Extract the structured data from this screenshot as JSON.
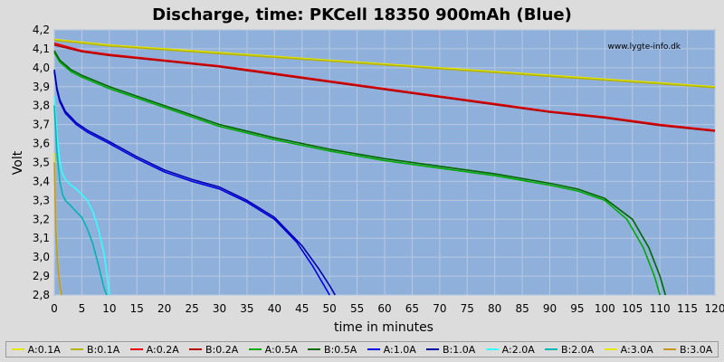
{
  "chart_data": {
    "type": "line",
    "title": "Discharge, time: PKCell 18350 900mAh (Blue)",
    "xlabel": "time in minutes",
    "ylabel": "Volt",
    "watermark": "www.lygte-info.dk",
    "xlim": [
      0,
      120
    ],
    "ylim": [
      2.8,
      4.2
    ],
    "x_ticks": [
      "0",
      "5",
      "10",
      "15",
      "20",
      "25",
      "30",
      "35",
      "40",
      "45",
      "50",
      "55",
      "60",
      "65",
      "70",
      "75",
      "80",
      "85",
      "90",
      "95",
      "100",
      "105",
      "110",
      "115",
      "120"
    ],
    "y_ticks": [
      "2,8",
      "2,9",
      "3,0",
      "3,1",
      "3,2",
      "3,3",
      "3,4",
      "3,5",
      "3,6",
      "3,7",
      "3,8",
      "3,9",
      "4,0",
      "4,1",
      "4,2"
    ],
    "grid": true,
    "legend_position": "bottom",
    "plot_background": "#8fb0db",
    "series": [
      {
        "name": "A:0.1A",
        "color": "#e6e600",
        "x": [
          0,
          10,
          20,
          30,
          40,
          50,
          60,
          70,
          80,
          90,
          100,
          110,
          120
        ],
        "y": [
          4.15,
          4.12,
          4.1,
          4.08,
          4.06,
          4.04,
          4.02,
          4.0,
          3.98,
          3.96,
          3.94,
          3.92,
          3.9
        ]
      },
      {
        "name": "B:0.1A",
        "color": "#b4b400",
        "x": [
          0,
          10,
          20,
          30,
          40,
          50,
          60,
          70,
          80,
          90,
          100,
          110,
          120
        ],
        "y": [
          4.145,
          4.115,
          4.095,
          4.075,
          4.055,
          4.035,
          4.015,
          3.995,
          3.975,
          3.955,
          3.935,
          3.915,
          3.895
        ]
      },
      {
        "name": "A:0.2A",
        "color": "#e60000",
        "x": [
          0,
          5,
          10,
          20,
          30,
          40,
          50,
          60,
          70,
          80,
          90,
          100,
          110,
          120
        ],
        "y": [
          4.13,
          4.09,
          4.07,
          4.04,
          4.01,
          3.97,
          3.93,
          3.89,
          3.85,
          3.81,
          3.77,
          3.74,
          3.7,
          3.67
        ]
      },
      {
        "name": "B:0.2A",
        "color": "#b40000",
        "x": [
          0,
          5,
          10,
          20,
          30,
          40,
          50,
          60,
          70,
          80,
          90,
          100,
          110,
          120
        ],
        "y": [
          4.12,
          4.085,
          4.065,
          4.035,
          4.005,
          3.965,
          3.925,
          3.885,
          3.845,
          3.805,
          3.765,
          3.735,
          3.695,
          3.665
        ]
      },
      {
        "name": "A:0.5A",
        "color": "#00aa00",
        "x": [
          0,
          1,
          3,
          5,
          10,
          20,
          30,
          40,
          50,
          60,
          70,
          80,
          90,
          95,
          100,
          104,
          107,
          109,
          110
        ],
        "y": [
          4.08,
          4.03,
          3.98,
          3.95,
          3.89,
          3.79,
          3.69,
          3.62,
          3.56,
          3.51,
          3.47,
          3.43,
          3.38,
          3.35,
          3.3,
          3.2,
          3.05,
          2.9,
          2.8
        ]
      },
      {
        "name": "B:0.5A",
        "color": "#006600",
        "x": [
          0,
          1,
          3,
          5,
          10,
          20,
          30,
          40,
          50,
          60,
          70,
          80,
          90,
          95,
          100,
          105,
          108,
          110,
          111
        ],
        "y": [
          4.09,
          4.04,
          3.99,
          3.96,
          3.9,
          3.8,
          3.7,
          3.63,
          3.57,
          3.52,
          3.48,
          3.44,
          3.39,
          3.36,
          3.31,
          3.2,
          3.05,
          2.9,
          2.8
        ]
      },
      {
        "name": "A:1.0A",
        "color": "#0000e6",
        "x": [
          0,
          0.5,
          1,
          2,
          4,
          6,
          10,
          15,
          20,
          25,
          30,
          35,
          40,
          44,
          47,
          49,
          50
        ],
        "y": [
          3.98,
          3.88,
          3.82,
          3.76,
          3.7,
          3.66,
          3.6,
          3.52,
          3.45,
          3.4,
          3.36,
          3.29,
          3.2,
          3.08,
          2.95,
          2.85,
          2.8
        ]
      },
      {
        "name": "B:1.0A",
        "color": "#0000aa",
        "x": [
          0,
          0.5,
          1,
          2,
          4,
          6,
          10,
          15,
          20,
          25,
          30,
          35,
          40,
          45,
          48,
          50,
          51
        ],
        "y": [
          3.99,
          3.89,
          3.83,
          3.77,
          3.71,
          3.67,
          3.61,
          3.53,
          3.46,
          3.41,
          3.37,
          3.3,
          3.21,
          3.06,
          2.94,
          2.85,
          2.8
        ]
      },
      {
        "name": "A:2.0A",
        "color": "#33ffff",
        "x": [
          0,
          0.5,
          1,
          1.5,
          2,
          3,
          4,
          5,
          6,
          7,
          8,
          9,
          9.5,
          10
        ],
        "y": [
          3.85,
          3.65,
          3.5,
          3.44,
          3.41,
          3.38,
          3.36,
          3.33,
          3.3,
          3.24,
          3.15,
          3.02,
          2.92,
          2.8
        ]
      },
      {
        "name": "B:2.0A",
        "color": "#00b4b4",
        "x": [
          0,
          0.5,
          1,
          1.5,
          2,
          3,
          4,
          5,
          6,
          7,
          8,
          8.5,
          9,
          9.5
        ],
        "y": [
          3.8,
          3.55,
          3.4,
          3.33,
          3.3,
          3.27,
          3.24,
          3.21,
          3.15,
          3.07,
          2.96,
          2.9,
          2.84,
          2.8
        ]
      },
      {
        "name": "A:3.0A",
        "color": "#e6e600",
        "x": [
          0,
          0.3,
          0.6,
          1,
          1.2
        ],
        "y": [
          3.55,
          3.2,
          3.0,
          2.86,
          2.8
        ]
      },
      {
        "name": "B:3.0A",
        "color": "#c8961e",
        "x": [
          0,
          0.3,
          0.6,
          1,
          1.3
        ],
        "y": [
          3.5,
          3.15,
          2.98,
          2.85,
          2.8
        ]
      }
    ]
  }
}
